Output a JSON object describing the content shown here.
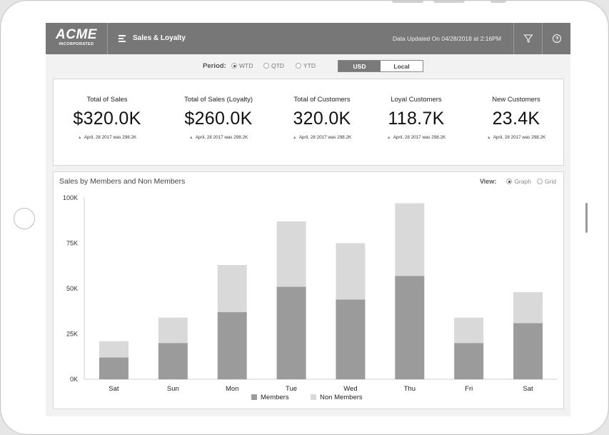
{
  "header": {
    "logo_main": "ACME",
    "logo_sub": "INCORPORATED",
    "title": "Sales & Loyalty",
    "updated": "Data Updated On 04/28/2018 at 2:16PM"
  },
  "period": {
    "label": "Period:",
    "options": [
      "WTD",
      "QTD",
      "YTD"
    ],
    "selected": "WTD"
  },
  "currency": {
    "options": [
      "USD",
      "Local"
    ],
    "selected": "USD"
  },
  "kpis": [
    {
      "label": "Total of Sales",
      "value": "$320.0K",
      "note": "April, 28 2017 was 298.2K"
    },
    {
      "label": "Total of Sales (Loyalty)",
      "value": "$260.0K",
      "note": "April, 28 2017 was 298.2K"
    },
    {
      "label": "Total of Customers",
      "value": "320.0K",
      "note": "April, 28 2017 was 298.2K"
    },
    {
      "label": "Loyal Customers",
      "value": "118.7K",
      "note": "April, 28 2017 was 298.2K"
    },
    {
      "label": "New Customers",
      "value": "23.4K",
      "note": "April, 28 2017 was 298.2K"
    }
  ],
  "view": {
    "label": "View:",
    "options": [
      "Graph",
      "Grid"
    ],
    "selected": "Graph"
  },
  "colors": {
    "members": "#9b9b9b",
    "non_members": "#d9d9d9"
  },
  "chart_data": {
    "type": "bar",
    "stacked": true,
    "title": "Sales by Members and Non Members",
    "categories": [
      "Sat",
      "Sun",
      "Mon",
      "Tue",
      "Wed",
      "Thu",
      "Fri",
      "Sat"
    ],
    "series": [
      {
        "name": "Members",
        "values": [
          12,
          20,
          37,
          51,
          44,
          57,
          20,
          31
        ]
      },
      {
        "name": "Non Members",
        "values": [
          9,
          14,
          26,
          36,
          31,
          40,
          14,
          17
        ]
      }
    ],
    "yticks": [
      "0K",
      "25K",
      "50K",
      "75K",
      "100K"
    ],
    "ylim": [
      0,
      100
    ],
    "legend_position": "bottom",
    "grid": false
  }
}
